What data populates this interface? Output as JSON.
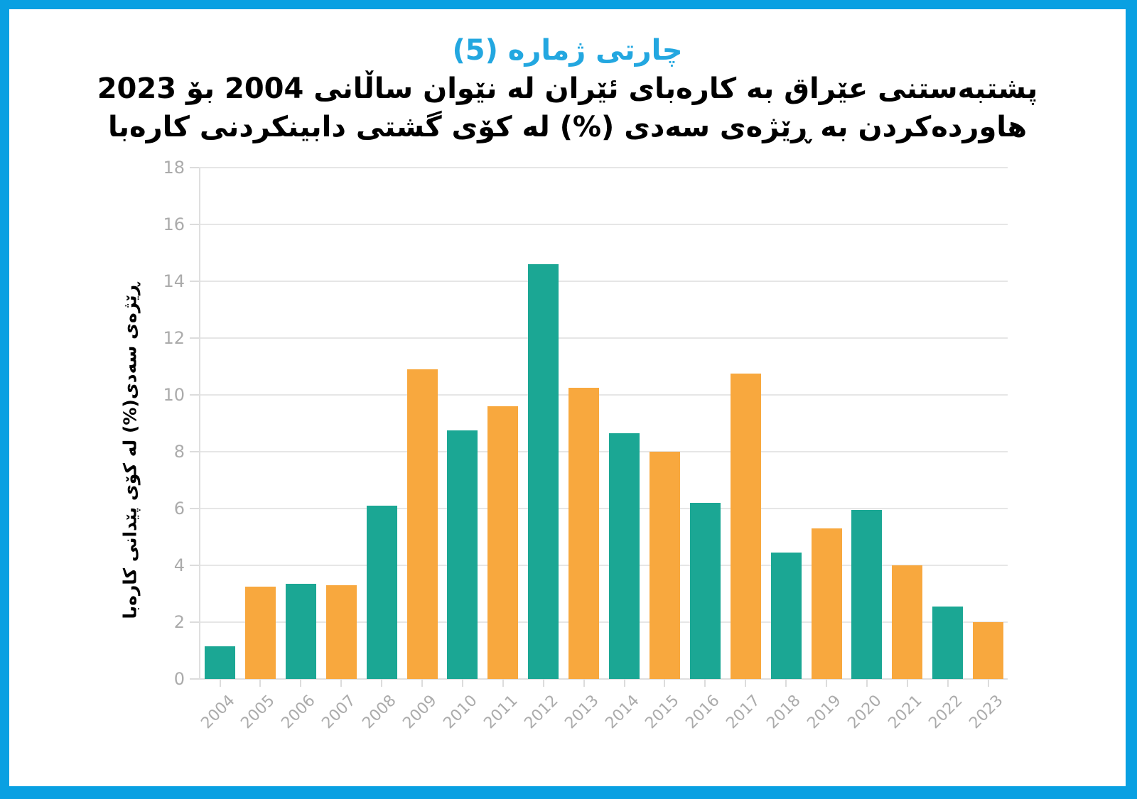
{
  "frame": {
    "border_color": "#09A0E2",
    "background_color": "#FFFFFF"
  },
  "header": {
    "chart_label": "چارتی ژماره (5)",
    "chart_label_color": "#23A7E0",
    "title_line1": "پشتبەستنی عێراق به کارەبای ئێران له نێوان ساڵانی 2004 بۆ 2023",
    "title_line2": "هاوردەکردن به ڕێژەی سەدی (%) له کۆی گشتی دابینکردنی کارەبا"
  },
  "chart_data": {
    "type": "bar",
    "title": "چارتی ژماره (5)",
    "subtitle_line1": "پشتبەستنی عێراق به کارەبای ئێران له نێوان ساڵانی 2004 بۆ 2023",
    "subtitle_line2": "هاوردەکردن به ڕێژەی سەدی (%) له کۆی گشتی دابینکردنی کارەبا",
    "categories": [
      "2004",
      "2005",
      "2006",
      "2007",
      "2008",
      "2009",
      "2010",
      "2011",
      "2012",
      "2013",
      "2014",
      "2015",
      "2016",
      "2017",
      "2018",
      "2019",
      "2020",
      "2021",
      "2022",
      "2023"
    ],
    "values": [
      1.15,
      3.25,
      3.35,
      3.3,
      6.1,
      10.9,
      8.75,
      9.6,
      14.6,
      10.25,
      8.65,
      8.0,
      6.2,
      10.75,
      4.45,
      5.3,
      5.95,
      4.0,
      2.55,
      2.0
    ],
    "xlabel": "",
    "ylabel": "ڕێژەی سەدی(%) له کۆی پێدانی کارەبا",
    "ylim": [
      0,
      18
    ],
    "ytick_step": 2,
    "grid": true,
    "legend": null,
    "bar_color_even": "#1BA794",
    "bar_color_odd": "#F8A83E",
    "gridline_color": "#E6E6E6",
    "axis_line_color": "#DFDFDF",
    "tick_dash_color": "#DCDCDC",
    "tick_label_color": "#ABABAB"
  }
}
